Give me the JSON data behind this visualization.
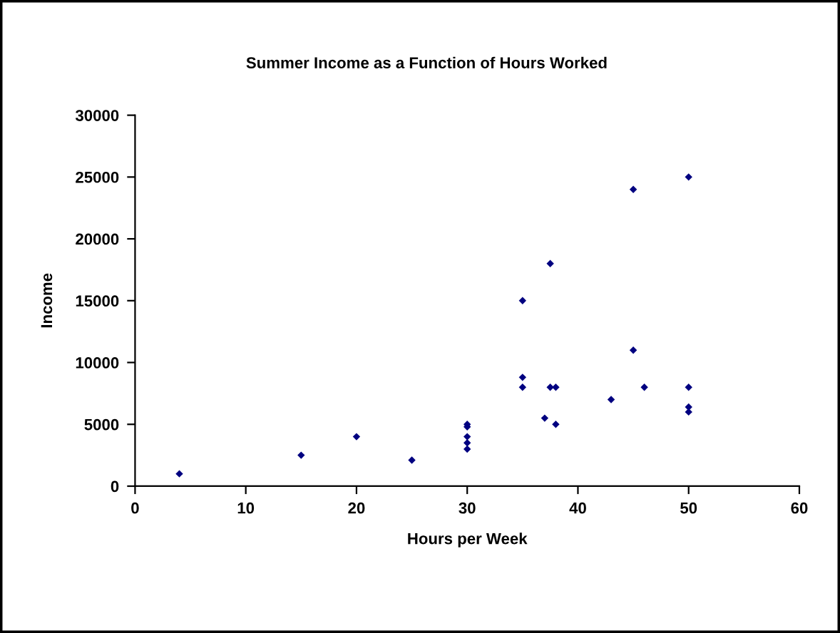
{
  "chart_data": {
    "type": "scatter",
    "title": "Summer Income as a Function of Hours Worked",
    "xlabel": "Hours per Week",
    "ylabel": "Income",
    "x": [
      4,
      15,
      20,
      25,
      30,
      30,
      30,
      30,
      30,
      35,
      35,
      35,
      37.5,
      37.5,
      38,
      37,
      38,
      43,
      45,
      45,
      46,
      50,
      50,
      50,
      50
    ],
    "series": [
      {
        "color": "#000080",
        "values": [
          1000,
          2500,
          4000,
          2100,
          3000,
          3500,
          4000,
          4800,
          5000,
          15000,
          8800,
          8000,
          18000,
          8000,
          8000,
          5500,
          5000,
          7000,
          24000,
          11000,
          8000,
          25000,
          8000,
          6400,
          6000
        ]
      }
    ],
    "xlim": [
      0,
      60
    ],
    "xticks": [
      0,
      10,
      20,
      30,
      40,
      50,
      60
    ],
    "ylim": [
      0,
      30000
    ],
    "yticks": [
      0,
      5000,
      10000,
      15000,
      20000,
      25000,
      30000
    ],
    "marker": "diamond",
    "grid": false,
    "legend": false
  }
}
